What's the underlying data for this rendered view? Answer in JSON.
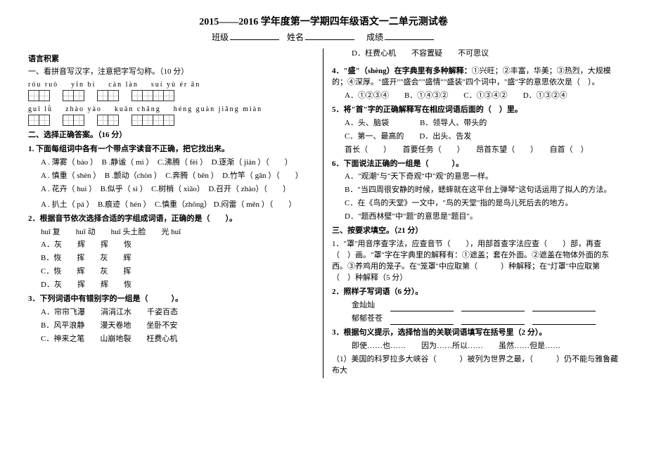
{
  "title": "2015——2016 学年度第一学期四年级语文一二单元测试卷",
  "header": {
    "class_label": "班级",
    "name_label": "姓名",
    "score_label": "成绩"
  },
  "left": {
    "acc": "语言积累",
    "q1_head": "一、看拼音写汉字，注意把字写匀称。（10 分）",
    "pinyin1": [
      "róu  ruò",
      "yǐn  bì",
      "càn  làn",
      "suí  yù  ér  ān"
    ],
    "pinyin2": [
      "guī  lǜ",
      "zhào  yào",
      "kuān  chǎng",
      "héng guàn jiāng miàn"
    ],
    "grid1": [
      2,
      2,
      2,
      4
    ],
    "grid2": [
      2,
      2,
      2,
      4
    ],
    "q2_head": "二、选择正确答案。（16 分）",
    "q2_1": "1. 下面每组词中各有一个带点字读音不正确，把它找出来。",
    "q2_1_a": "A . 薄雾（ báo ）　B .静谧（  mì ）　C.沸腾（ fèi ）　D.逐渐（ jiàn ）（　　）",
    "q2_1_b": "A . 慎重（ shèn ）　B .颤动（chòn ）　C.奔腾（ bēn ）　D.竹竿（ gān ）（　　）",
    "q2_1_c": "A . 花卉（ huì ）　B.似乎（ sì ）　C.树梢（ xiāo）　D.召开（ zhào）（　　）",
    "q2_1_d": "A . 扒土（ pá  ）　B.痕迹（ hén ）　C.慎重（zhōng） D.闷雷（ mēn ）（　　）",
    "q2_2": "2．根据音节依次选择合适的字组成词语，正确的是（　　）。",
    "q2_2_sub": "huī 复　　huī 动　　huī 头土脸　　光 huī",
    "q2_2_a": "A．灰　　辉　　挥　　恢",
    "q2_2_b": "B．恢　　挥　　灰　　辉",
    "q2_2_c": "C．恢　　辉　　灰　　挥",
    "q2_2_d": "D．灰　　挥　　辉　　恢",
    "q2_3": "3．下列词语中有错别字的一组是（　　　）。",
    "q2_3_a": "A．帘帘飞瀑　　涓涓江水　　千姿百态",
    "q2_3_b": "B．风平浪静　　漫天卷地　　坐卧不安",
    "q2_3_c": "C．神来之笔　　山崩地裂　　枉费心机"
  },
  "right": {
    "top_d": "D．枉费心机　　不容置疑　　不可思议",
    "q4": "4．\"盛\"（shèng）在字典里有多种解释：",
    "q4_body": "①兴旺；②丰富，华美；③热烈，大规模的；④深厚。\"盛开\"\"盛会\"\"盛情\"\"盛装\"四个词中，\"盛\"字的意思依次是（　）。",
    "q4_opts": "A．①②③④　　B．①④③②　　C．①③④②　　D．①③②④",
    "q5": "5．将\"首\"字的正确解释写在相应词语后面的（　）里。",
    "q5_a": "A．头、脑袋　　　　B．领导人、带头的",
    "q5_b": "C．第一、最高的　　D．出头、告发",
    "q5_line": "首长（　　）　　首要任务（　　）　　昂首东望（　　）　　自首（　）",
    "q6": "6．下面说法正确的一组是（　　　）。",
    "q6_a": "A．\"观潮\"与\"天下奇观\"中\"观\"的意思一样。",
    "q6_b": "B．\"当四周很安静的时候，蟋蟀就在这平台上弹琴\"这句话运用了拟人的方法。",
    "q6_c": "C．在《鸟的天堂》一文中，\"鸟的天堂\"指的是鸟儿死后去的地方。",
    "q6_d": "D．\"题西林壁\"中\"题\"的意思是\"题目\"。",
    "q3_head": "三、按要求填空。（21 分）",
    "q3_1": "1．\"罩\"用音序查字法，应查音节（　　），用部首查字法应查（　　）部，再查（　）画。\"罩\"字在字典里的解释有：①遮盖；套在外面。②遮盖在物体外面的东西。③养鸡用的笼子。在\"笼罩\"中应取第（　　　）种解释；在\"灯罩\"中应取第（　）种解释（5 分）",
    "q3_2": "2．照样子写词语（6 分）。",
    "q3_2_a": "金灿灿",
    "q3_2_b": "郁郁苍苍",
    "q3_3": "3．根据句义提示，选择恰当的关联词语填写在括号里（2 分）。",
    "q3_3_opts": "即使……也……　　因为……所以……　　虽然……但是……",
    "q3_3_line": "（1）美国的科罗拉多大峡谷（　　　）被列为世界之最，（　　　）仍不能与雅鲁藏布大"
  }
}
